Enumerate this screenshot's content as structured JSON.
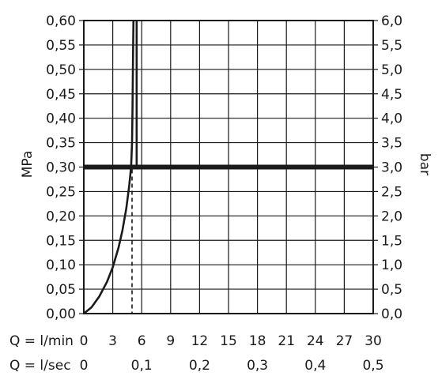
{
  "chart_data": {
    "type": "line",
    "xlabel_primary": "Q = l/min",
    "xlabel_secondary": "Q = l/sec",
    "ylabel_left": "MPa",
    "ylabel_right": "bar",
    "xlim": [
      0,
      30
    ],
    "ylim": [
      0,
      0.6
    ],
    "x_ticks": [
      "0",
      "3",
      "6",
      "9",
      "12",
      "15",
      "18",
      "21",
      "24",
      "27",
      "30"
    ],
    "x_ticks_secondary": [
      {
        "x": 0,
        "label": "0"
      },
      {
        "x": 6,
        "label": "0,1"
      },
      {
        "x": 12,
        "label": "0,2"
      },
      {
        "x": 18,
        "label": "0,3"
      },
      {
        "x": 24,
        "label": "0,4"
      },
      {
        "x": 30,
        "label": "0,5"
      }
    ],
    "y_ticks_left": [
      "0,00",
      "0,05",
      "0,10",
      "0,15",
      "0,20",
      "0,25",
      "0,30",
      "0,35",
      "0,40",
      "0,45",
      "0,50",
      "0,55",
      "0,60"
    ],
    "y_ticks_right": [
      "0,0",
      "0,5",
      "1,0",
      "1,5",
      "2,0",
      "2,5",
      "3,0",
      "3,5",
      "4,0",
      "4,5",
      "5,0",
      "5,5",
      "6,0"
    ],
    "grid": true,
    "series": [
      {
        "x": [
          0,
          0.8,
          1.6,
          2.4,
          3.0,
          3.6,
          4.0,
          4.4,
          4.7,
          4.9,
          5.0,
          5.05,
          5.1,
          5.15
        ],
        "y": [
          0,
          0.013,
          0.035,
          0.065,
          0.095,
          0.135,
          0.17,
          0.215,
          0.26,
          0.3,
          0.35,
          0.42,
          0.52,
          0.6
        ]
      }
    ],
    "reference_line_y": 0.3,
    "reference_marker_x": 5.0
  }
}
